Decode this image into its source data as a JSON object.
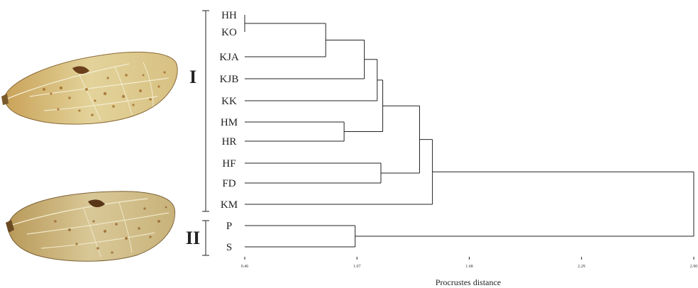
{
  "figure": {
    "groups": [
      "I",
      "II"
    ],
    "xlabel": "Procrustes distance"
  },
  "chart_data": {
    "type": "dendrogram",
    "xlabel": "Procrustes distance",
    "xlim": [
      0.46,
      2.9
    ],
    "x_ticks": [
      "0.46",
      "1.07",
      "1.68",
      "2.29",
      "2.90"
    ],
    "leaves": [
      "HH",
      "KO",
      "KJA",
      "KJB",
      "KK",
      "HM",
      "HR",
      "HF",
      "FD",
      "KM",
      "P",
      "S"
    ],
    "groups": [
      {
        "label": "I",
        "leaves": [
          "HH",
          "KO",
          "KJA",
          "KJB",
          "KK",
          "HM",
          "HR",
          "HF",
          "FD",
          "KM"
        ]
      },
      {
        "label": "II",
        "leaves": [
          "P",
          "S"
        ]
      }
    ],
    "merges": [
      {
        "a": "HH",
        "b": "KO",
        "height": 0.46
      },
      {
        "a": "HH+KO",
        "b": "KJA",
        "height": 0.9
      },
      {
        "a": "HH+KO+KJA",
        "b": "KJB",
        "height": 1.11
      },
      {
        "a": "HH+KO+KJA+KJB",
        "b": "KK",
        "height": 1.18
      },
      {
        "a": "HM",
        "b": "HR",
        "height": 1.0
      },
      {
        "a": "HH+KO+KJA+KJB+KK",
        "b": "HM+HR",
        "height": 1.21
      },
      {
        "a": "HF",
        "b": "FD",
        "height": 1.2
      },
      {
        "a": "HH+KO+KJA+KJB+KK+HM+HR",
        "b": "HF+FD",
        "height": 1.41
      },
      {
        "a": "HH+KO+KJA+KJB+KK+HM+HR+HF+FD",
        "b": "KM",
        "height": 1.48
      },
      {
        "a": "P",
        "b": "S",
        "height": 1.06
      },
      {
        "a": "I",
        "b": "II",
        "height": 2.9
      }
    ]
  },
  "colors": {
    "line": "#222222",
    "wing_membrane": "#e7d9a6",
    "wing_spots": "#a5702f",
    "wing_vein": "#f3ecd0"
  },
  "icons": [
    "wing-top-image",
    "wing-bottom-image"
  ]
}
